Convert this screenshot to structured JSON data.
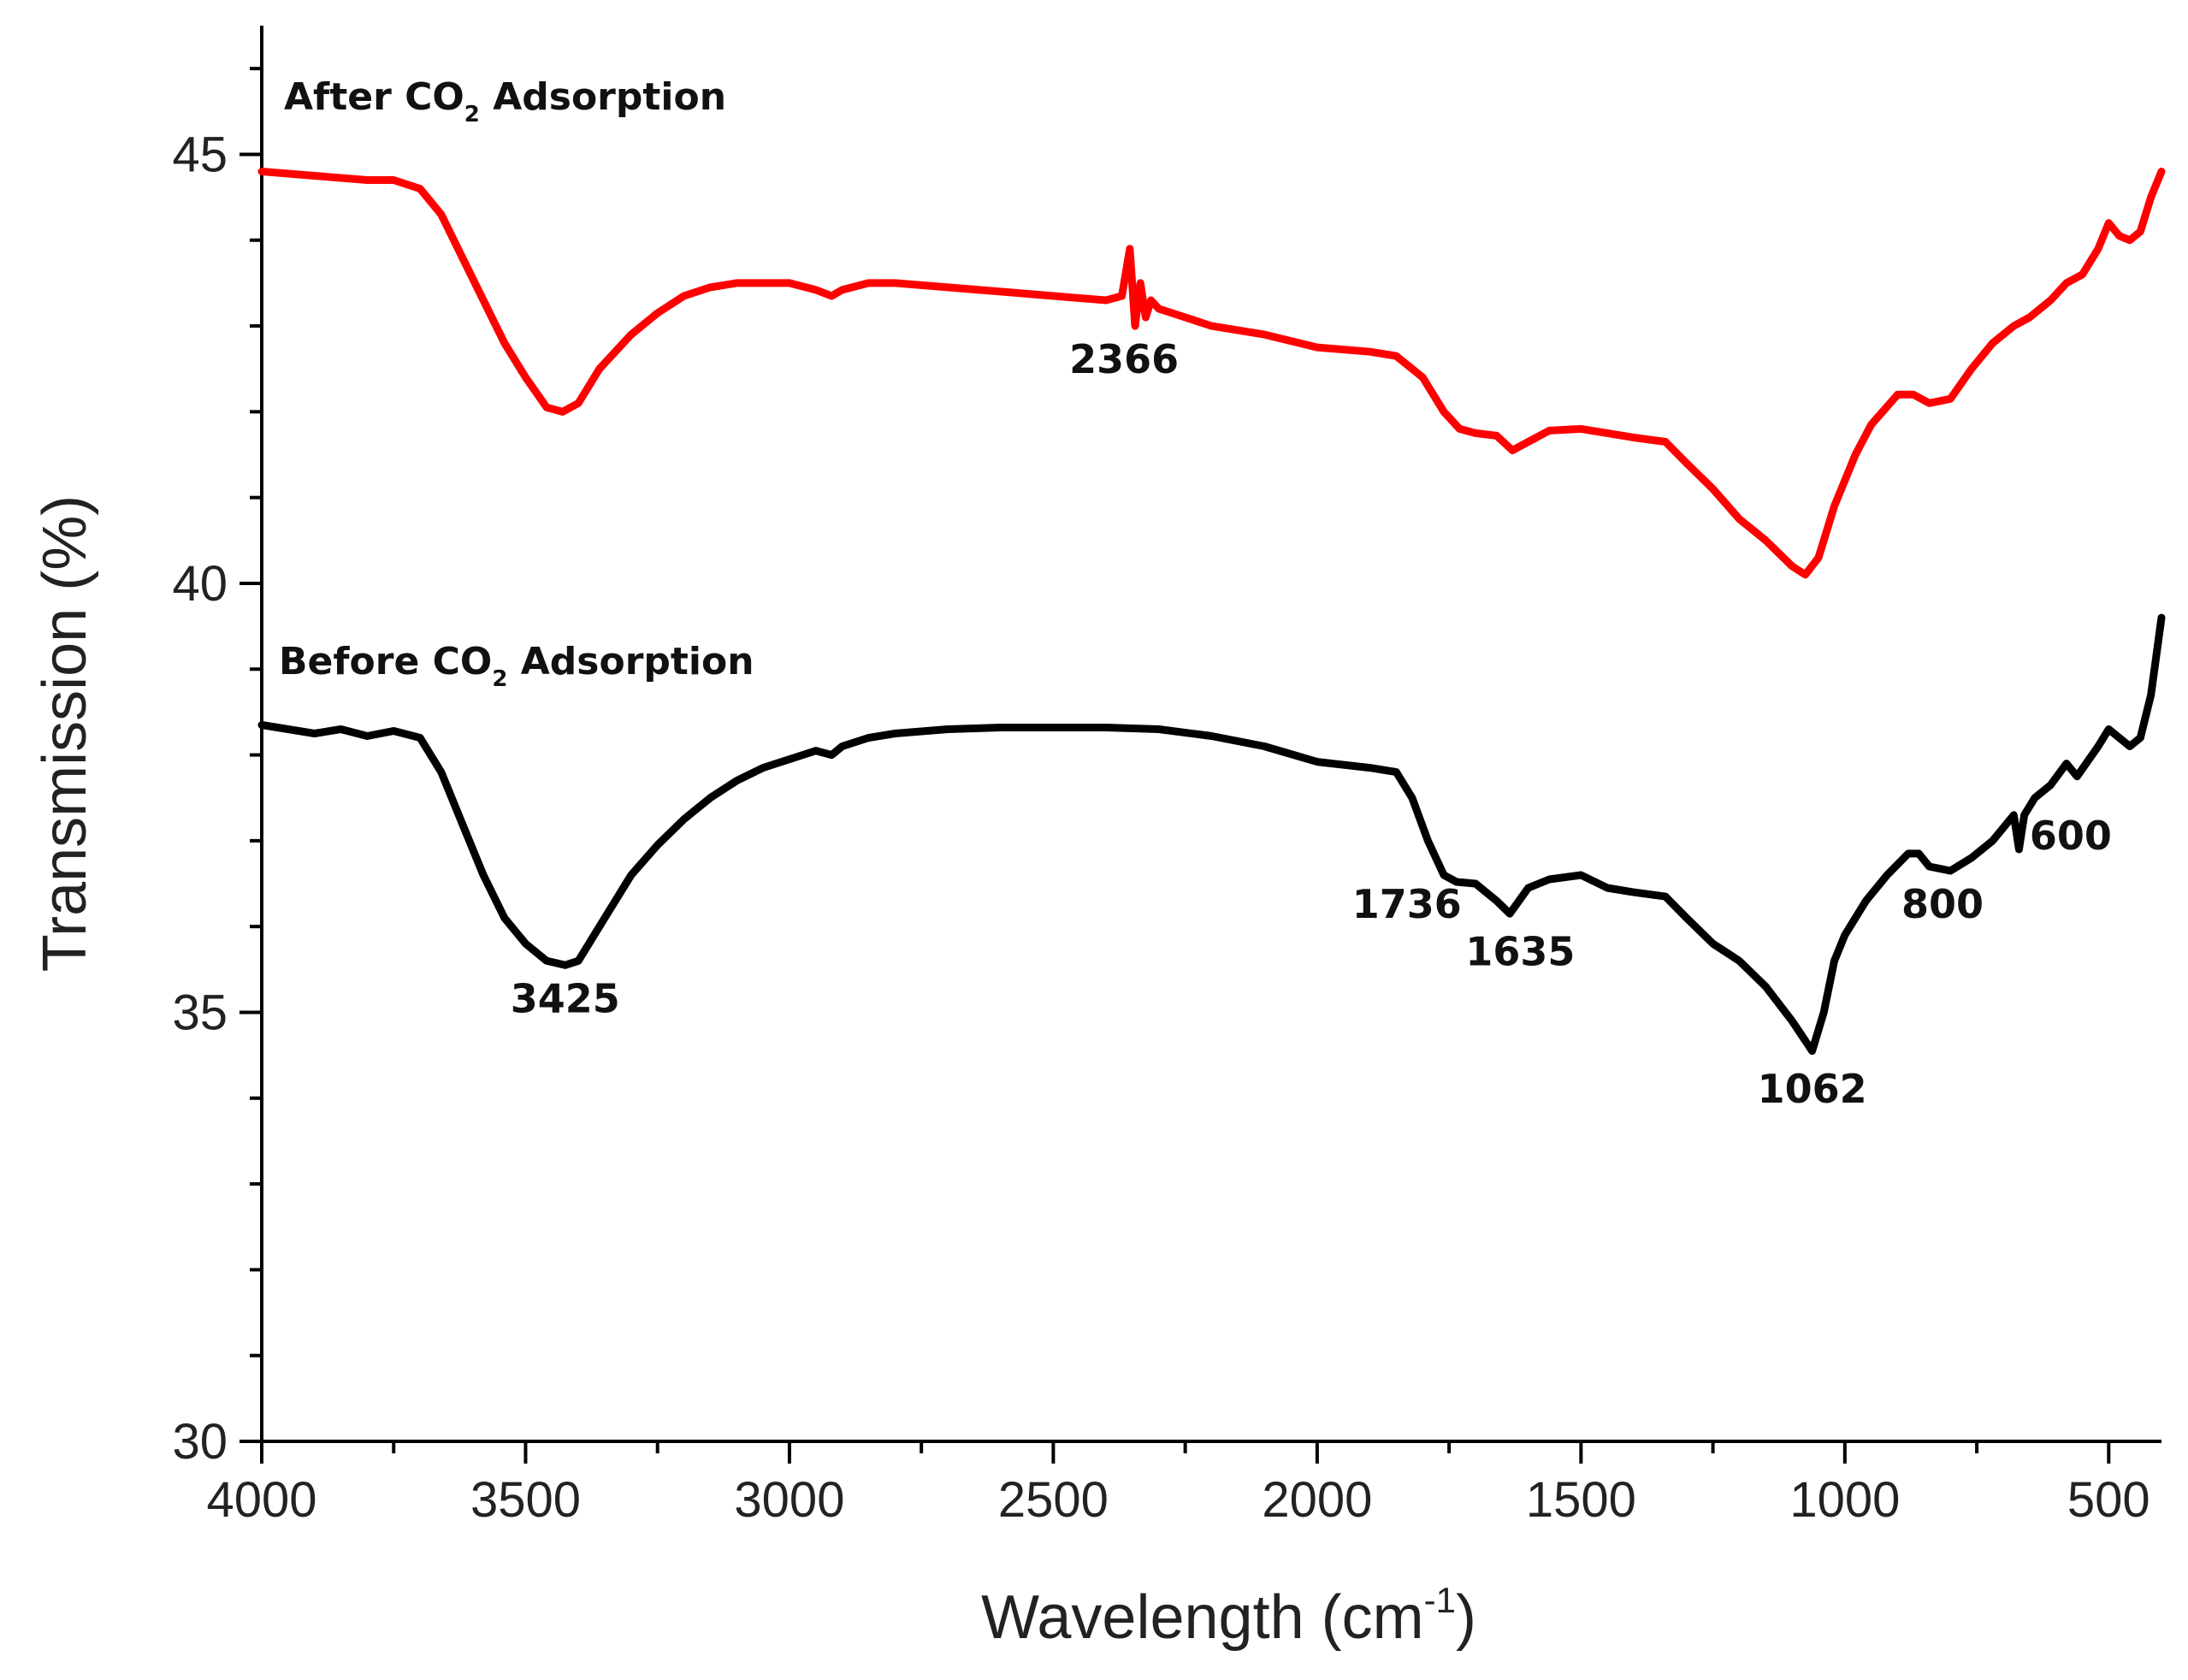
{
  "chart_data": {
    "type": "line",
    "title": "",
    "xlabel": "Wavelength (cm",
    "xlabel_sup": "-1",
    "xlabel_end": ")",
    "ylabel": "Transmission (%)",
    "xlim": [
      4000,
      400
    ],
    "ylim": [
      30,
      46.5
    ],
    "x_ticks": [
      4000,
      3500,
      3000,
      2500,
      2000,
      1500,
      1000,
      500
    ],
    "x_tick_labels": [
      "4000",
      "3500",
      "3000",
      "2500",
      "2000",
      "1500",
      "1000",
      "500"
    ],
    "y_ticks": [
      30,
      35,
      40,
      45
    ],
    "y_tick_labels": [
      "30",
      "35",
      "40",
      "45"
    ],
    "grid": false,
    "series": [
      {
        "name": "After CO2 Adsorption",
        "label_prefix": "After CO",
        "label_sub": "2",
        "label_suffix": " Adsorption",
        "color": "#ff0000",
        "x": [
          4000,
          3900,
          3800,
          3750,
          3700,
          3660,
          3620,
          3580,
          3540,
          3500,
          3460,
          3430,
          3400,
          3360,
          3300,
          3250,
          3200,
          3150,
          3100,
          3000,
          2950,
          2920,
          2900,
          2850,
          2800,
          2700,
          2600,
          2500,
          2400,
          2370,
          2355,
          2345,
          2335,
          2325,
          2315,
          2300,
          2250,
          2200,
          2100,
          2000,
          1900,
          1850,
          1800,
          1760,
          1730,
          1700,
          1660,
          1630,
          1600,
          1560,
          1500,
          1450,
          1400,
          1340,
          1300,
          1250,
          1200,
          1150,
          1100,
          1075,
          1050,
          1020,
          980,
          950,
          900,
          870,
          840,
          800,
          760,
          720,
          680,
          650,
          610,
          580,
          550,
          520,
          500,
          480,
          460,
          440,
          420,
          400
        ],
        "y": [
          44.8,
          44.75,
          44.7,
          44.7,
          44.6,
          44.3,
          43.8,
          43.3,
          42.8,
          42.4,
          42.05,
          42.0,
          42.1,
          42.5,
          42.9,
          43.15,
          43.35,
          43.45,
          43.5,
          43.5,
          43.42,
          43.35,
          43.42,
          43.5,
          43.5,
          43.45,
          43.4,
          43.35,
          43.3,
          43.35,
          43.9,
          43.0,
          43.5,
          43.1,
          43.3,
          43.2,
          43.1,
          43.0,
          42.9,
          42.75,
          42.7,
          42.65,
          42.4,
          42.0,
          41.8,
          41.75,
          41.72,
          41.55,
          41.65,
          41.78,
          41.8,
          41.75,
          41.7,
          41.65,
          41.4,
          41.1,
          40.75,
          40.5,
          40.2,
          40.1,
          40.3,
          40.9,
          41.5,
          41.85,
          42.2,
          42.2,
          42.1,
          42.15,
          42.5,
          42.8,
          43.0,
          43.1,
          43.3,
          43.5,
          43.6,
          43.9,
          44.2,
          44.05,
          44.0,
          44.1,
          44.5,
          44.8
        ]
      },
      {
        "name": "Before CO2 Adsorption",
        "label_prefix": "Before CO",
        "label_sub": "2",
        "label_suffix": " Adsorption",
        "color": "#000000",
        "x": [
          4000,
          3900,
          3850,
          3800,
          3750,
          3700,
          3660,
          3620,
          3580,
          3540,
          3500,
          3460,
          3425,
          3400,
          3360,
          3300,
          3250,
          3200,
          3150,
          3100,
          3050,
          3000,
          2950,
          2920,
          2900,
          2850,
          2800,
          2700,
          2600,
          2500,
          2400,
          2300,
          2200,
          2100,
          2000,
          1900,
          1850,
          1820,
          1790,
          1760,
          1736,
          1700,
          1660,
          1635,
          1600,
          1560,
          1500,
          1450,
          1400,
          1340,
          1300,
          1250,
          1200,
          1150,
          1100,
          1062,
          1040,
          1020,
          1000,
          960,
          920,
          880,
          860,
          840,
          800,
          760,
          720,
          680,
          670,
          660,
          640,
          610,
          580,
          560,
          520,
          500,
          480,
          460,
          440,
          420,
          400
        ],
        "y": [
          38.35,
          38.25,
          38.3,
          38.22,
          38.28,
          38.2,
          37.8,
          37.2,
          36.6,
          36.1,
          35.8,
          35.6,
          35.55,
          35.6,
          36.0,
          36.6,
          36.95,
          37.25,
          37.5,
          37.7,
          37.85,
          37.95,
          38.05,
          38.0,
          38.1,
          38.2,
          38.25,
          38.3,
          38.32,
          38.32,
          38.32,
          38.3,
          38.22,
          38.1,
          37.92,
          37.85,
          37.8,
          37.5,
          37.0,
          36.6,
          36.52,
          36.5,
          36.3,
          36.15,
          36.45,
          36.55,
          36.6,
          36.45,
          36.4,
          36.35,
          36.1,
          35.8,
          35.6,
          35.3,
          34.9,
          34.55,
          35.0,
          35.6,
          35.9,
          36.3,
          36.6,
          36.85,
          36.85,
          36.7,
          36.65,
          36.8,
          37.0,
          37.3,
          36.9,
          37.3,
          37.5,
          37.65,
          37.9,
          37.75,
          38.1,
          38.3,
          38.2,
          38.1,
          38.2,
          38.7,
          39.6
        ]
      }
    ],
    "annotations": [
      {
        "text": "2366",
        "x": 2366,
        "y": 42.45
      },
      {
        "text": "3425",
        "x": 3425,
        "y": 35.0
      },
      {
        "text": "1736",
        "x": 1830,
        "y": 36.1
      },
      {
        "text": "1635",
        "x": 1615,
        "y": 35.55
      },
      {
        "text": "1062",
        "x": 1062,
        "y": 33.95
      },
      {
        "text": "800",
        "x": 815,
        "y": 36.1
      },
      {
        "text": "600",
        "x": 572,
        "y": 36.9
      }
    ]
  }
}
